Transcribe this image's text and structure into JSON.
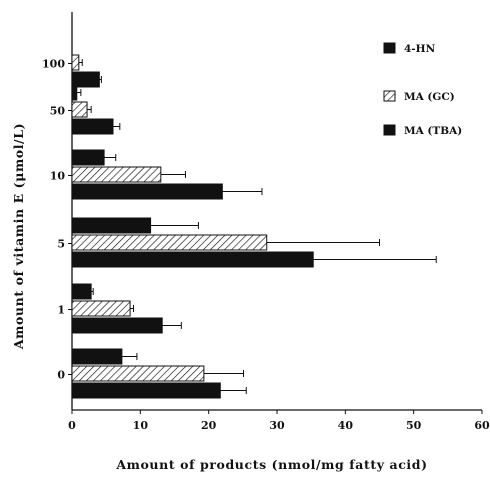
{
  "chart_data": {
    "type": "bar",
    "orientation": "horizontal",
    "xlabel": "Amount of products (nmol/mg fatty acid)",
    "ylabel": "Amount of vitamin E (μmol/L)",
    "xlim": [
      0,
      60
    ],
    "xticks": [
      "0",
      "10",
      "20",
      "30",
      "40",
      "50",
      "60"
    ],
    "categories": [
      "100",
      "50",
      "10",
      "5",
      "1",
      "0"
    ],
    "legend_position": "top-right",
    "series": [
      {
        "name": "4-HN",
        "fill": "solid",
        "color": "#111111",
        "values": [
          null,
          0.7,
          4.7,
          11.5,
          2.8,
          7.3
        ],
        "errors": [
          null,
          0.6,
          1.7,
          7.0,
          0.3,
          2.2
        ]
      },
      {
        "name": "MA (GC)",
        "fill": "hatched",
        "color": "#111111",
        "values": [
          1.0,
          2.2,
          13.0,
          28.5,
          8.5,
          19.3
        ],
        "errors": [
          0.5,
          0.6,
          3.6,
          16.5,
          0.5,
          5.8
        ]
      },
      {
        "name": "MA (TBA)",
        "fill": "solid",
        "color": "#111111",
        "values": [
          4.0,
          6.0,
          22.0,
          35.3,
          13.2,
          21.7
        ],
        "errors": [
          0.3,
          1.0,
          5.8,
          18.0,
          2.8,
          3.8
        ]
      }
    ]
  }
}
